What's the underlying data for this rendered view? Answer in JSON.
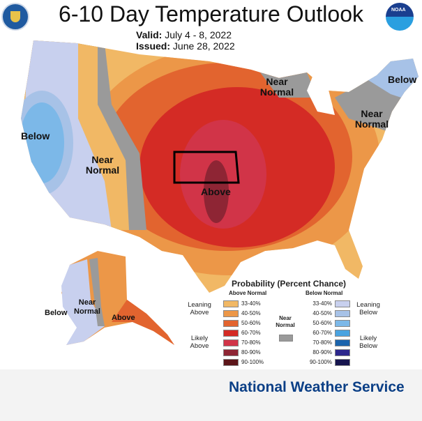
{
  "header": {
    "title": "6-10 Day Temperature Outlook",
    "valid_label": "Valid:",
    "valid_value": "July 4 - 8, 2022",
    "issued_label": "Issued:",
    "issued_value": "June 28, 2022"
  },
  "logos": {
    "left": "commerce-seal-icon",
    "right": "noaa-logo-icon",
    "noaa_text": "NOAA"
  },
  "map_labels": {
    "below_west": "Below",
    "near_west": "Near Normal",
    "near_north": "Near Normal",
    "below_ne": "Below",
    "near_ne": "Near Normal",
    "above": "Above",
    "ak_below": "Below",
    "ak_near": "Near Normal",
    "ak_above": "Above"
  },
  "legend": {
    "title": "Probability (Percent Chance)",
    "above_header": "Above Normal",
    "below_header": "Below Normal",
    "near_label": "Near Normal",
    "near_color": "#9a9a9a",
    "leaning_above": "Leaning Above",
    "likely_above": "Likely Above",
    "leaning_below": "Leaning Below",
    "likely_below": "Likely Below",
    "above": [
      {
        "range": "33-40%",
        "color": "#f1b865"
      },
      {
        "range": "40-50%",
        "color": "#ec9748"
      },
      {
        "range": "50-60%",
        "color": "#e2642f"
      },
      {
        "range": "60-70%",
        "color": "#d42b25"
      },
      {
        "range": "70-80%",
        "color": "#d13448"
      },
      {
        "range": "80-90%",
        "color": "#8e2534"
      },
      {
        "range": "90-100%",
        "color": "#5c1519"
      }
    ],
    "below": [
      {
        "range": "33-40%",
        "color": "#c8d0ee"
      },
      {
        "range": "40-50%",
        "color": "#a7c2e7"
      },
      {
        "range": "50-60%",
        "color": "#7cb8e8"
      },
      {
        "range": "60-70%",
        "color": "#4aa3e0"
      },
      {
        "range": "70-80%",
        "color": "#1b64ad"
      },
      {
        "range": "80-90%",
        "color": "#2c268c"
      },
      {
        "range": "90-100%",
        "color": "#17154f"
      }
    ]
  },
  "footer": {
    "text": "National Weather Service"
  }
}
